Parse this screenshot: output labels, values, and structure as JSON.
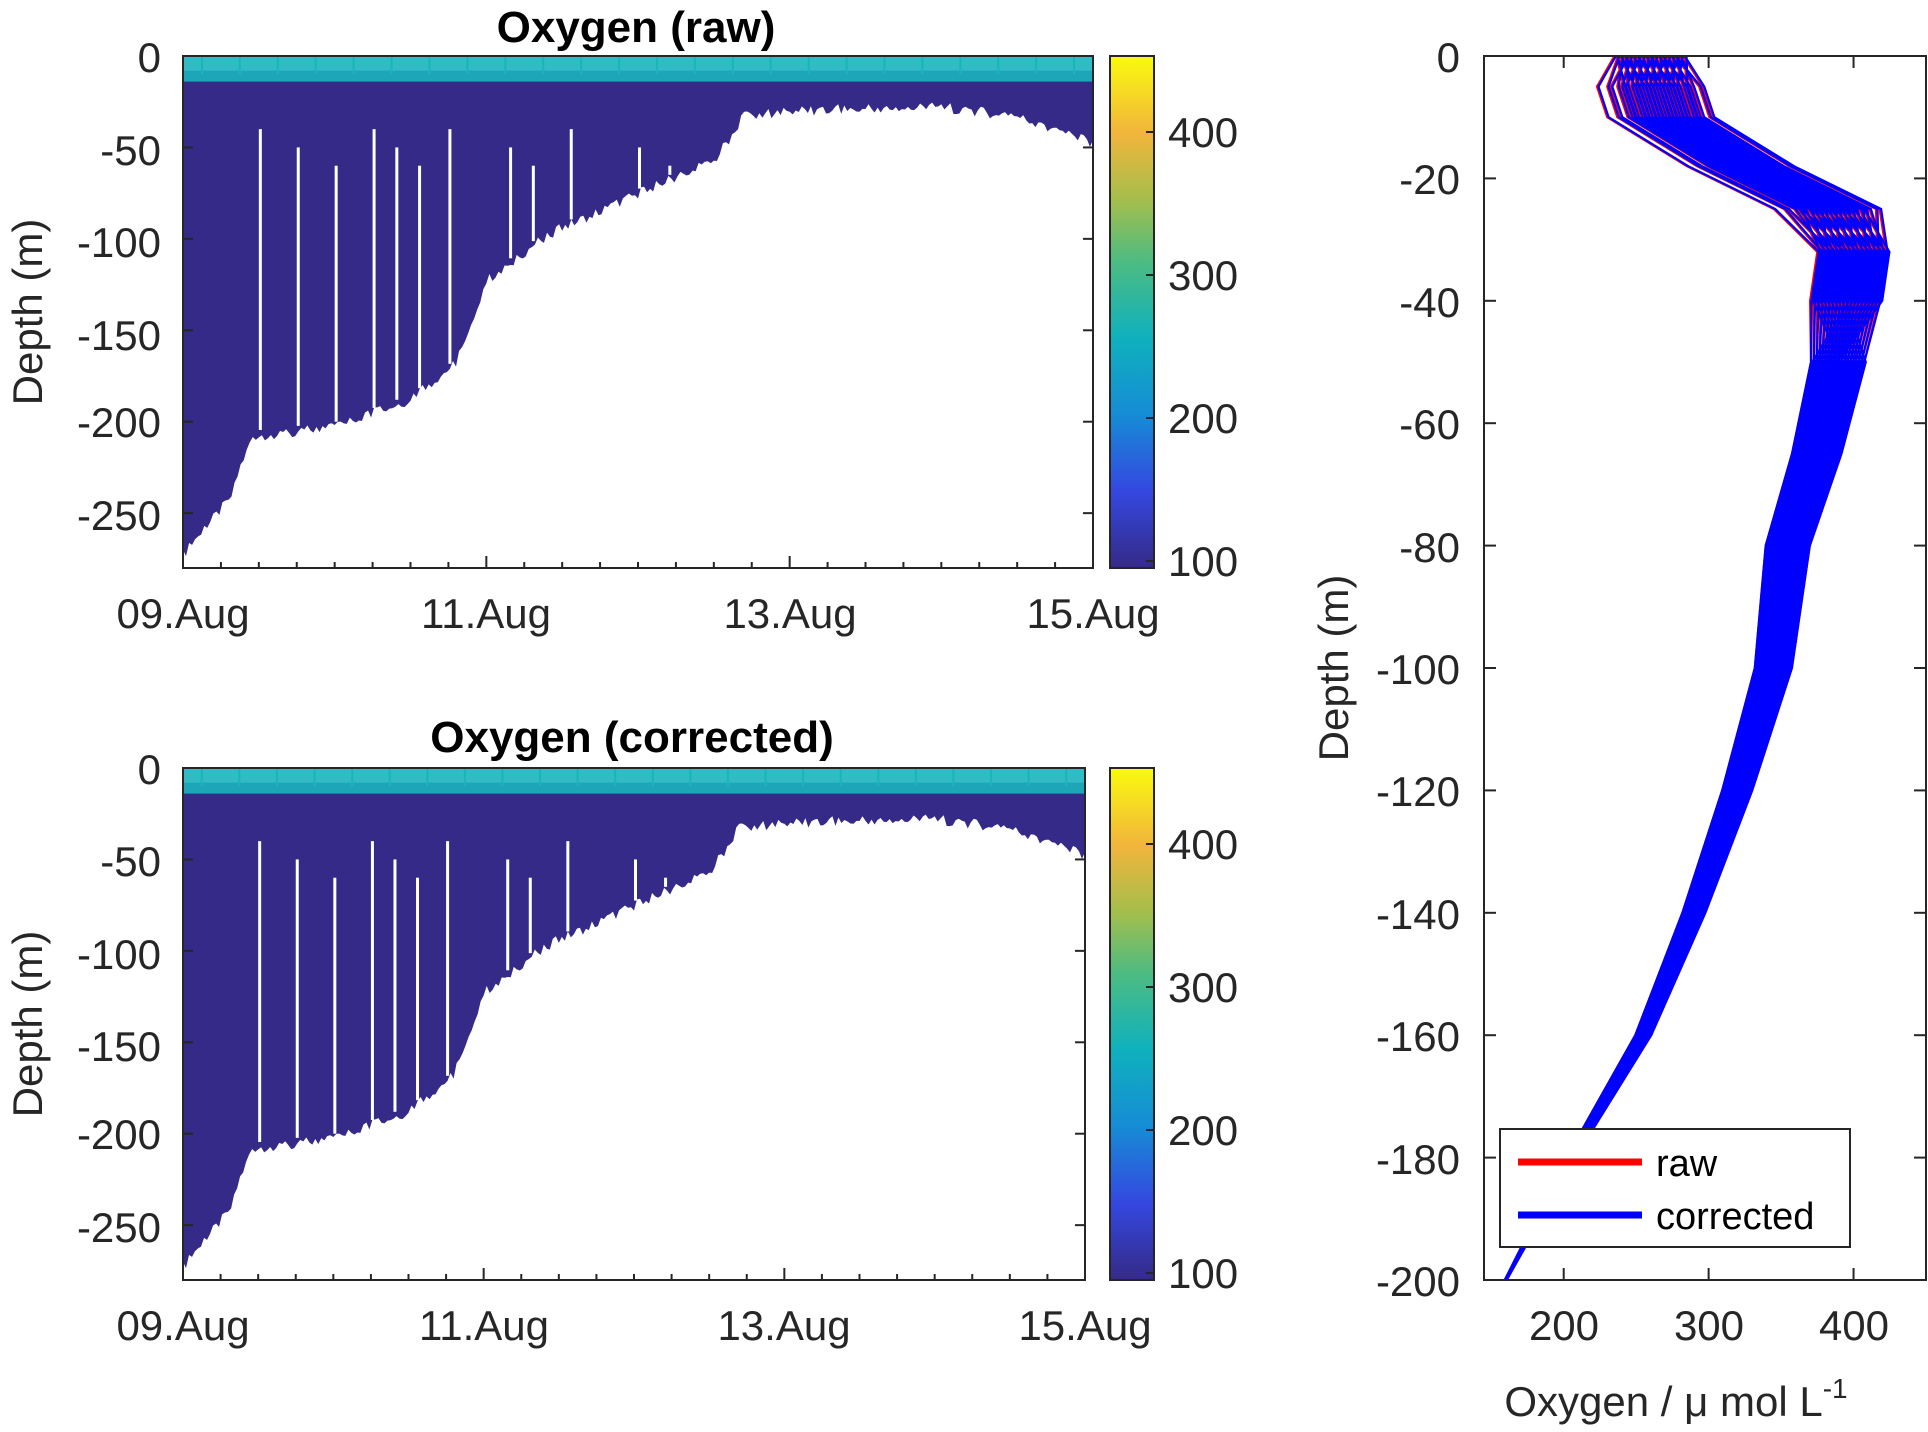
{
  "chart_data": [
    {
      "type": "heatmap",
      "title": "Oxygen (raw)",
      "ylabel": "Depth (m)",
      "xlabel": "",
      "x_tick_labels": [
        "09.Aug",
        "11.Aug",
        "13.Aug",
        "15.Aug"
      ],
      "y_tick_labels": [
        "0",
        "-50",
        "-100",
        "-150",
        "-200",
        "-250"
      ],
      "y_ticks": [
        0,
        -50,
        -100,
        -150,
        -200,
        -250
      ],
      "xlim_days": [
        9,
        15
      ],
      "ylim": [
        -280,
        0
      ],
      "colorbar": {
        "ticks": [
          100,
          200,
          300,
          400
        ],
        "tick_labels": [
          "100",
          "200",
          "300",
          "400"
        ],
        "range": [
          90,
          450
        ]
      },
      "bottom_profile": [
        {
          "day": 9.0,
          "depth": -270
        },
        {
          "day": 9.3,
          "depth": -240
        },
        {
          "day": 9.45,
          "depth": -205
        },
        {
          "day": 10.0,
          "depth": -200
        },
        {
          "day": 10.5,
          "depth": -185
        },
        {
          "day": 10.8,
          "depth": -165
        },
        {
          "day": 11.0,
          "depth": -120
        },
        {
          "day": 11.4,
          "depth": -95
        },
        {
          "day": 11.8,
          "depth": -80
        },
        {
          "day": 12.2,
          "depth": -65
        },
        {
          "day": 12.5,
          "depth": -55
        },
        {
          "day": 12.7,
          "depth": -30
        },
        {
          "day": 13.0,
          "depth": -27
        },
        {
          "day": 14.0,
          "depth": -25
        },
        {
          "day": 14.5,
          "depth": -30
        },
        {
          "day": 15.0,
          "depth": -45
        }
      ]
    },
    {
      "type": "heatmap",
      "title": "Oxygen (corrected)",
      "ylabel": "Depth (m)",
      "xlabel": "",
      "x_tick_labels": [
        "09.Aug",
        "11.Aug",
        "13.Aug",
        "15.Aug"
      ],
      "y_tick_labels": [
        "0",
        "-50",
        "-100",
        "-150",
        "-200",
        "-250"
      ],
      "y_ticks": [
        0,
        -50,
        -100,
        -150,
        -200,
        -250
      ],
      "xlim_days": [
        9,
        15
      ],
      "ylim": [
        -280,
        0
      ],
      "colorbar": {
        "ticks": [
          100,
          200,
          300,
          400
        ],
        "tick_labels": [
          "100",
          "200",
          "300",
          "400"
        ],
        "range": [
          90,
          450
        ]
      },
      "bottom_profile": [
        {
          "day": 9.0,
          "depth": -270
        },
        {
          "day": 9.3,
          "depth": -240
        },
        {
          "day": 9.45,
          "depth": -205
        },
        {
          "day": 10.0,
          "depth": -200
        },
        {
          "day": 10.5,
          "depth": -185
        },
        {
          "day": 10.8,
          "depth": -165
        },
        {
          "day": 11.0,
          "depth": -120
        },
        {
          "day": 11.4,
          "depth": -95
        },
        {
          "day": 11.8,
          "depth": -80
        },
        {
          "day": 12.2,
          "depth": -65
        },
        {
          "day": 12.5,
          "depth": -55
        },
        {
          "day": 12.7,
          "depth": -30
        },
        {
          "day": 13.0,
          "depth": -27
        },
        {
          "day": 14.0,
          "depth": -25
        },
        {
          "day": 14.5,
          "depth": -30
        },
        {
          "day": 15.0,
          "depth": -45
        }
      ]
    },
    {
      "type": "line",
      "title": "",
      "xlabel": "Oxygen / μ mol L",
      "xlabel_superscript": "-1",
      "ylabel": "Depth (m)",
      "xlim": [
        145,
        450
      ],
      "ylim": [
        -200,
        0
      ],
      "x_ticks": [
        200,
        300,
        400
      ],
      "x_tick_labels": [
        "200",
        "300",
        "400"
      ],
      "y_ticks": [
        0,
        -20,
        -40,
        -60,
        -80,
        -100,
        -120,
        -140,
        -160,
        -180,
        -200
      ],
      "y_tick_labels": [
        "0",
        "-20",
        "-40",
        "-60",
        "-80",
        "-100",
        "-120",
        "-140",
        "-160",
        "-180",
        "-200"
      ],
      "legend": {
        "position": "bottom-left",
        "entries": [
          "raw",
          "corrected"
        ]
      },
      "series": [
        {
          "name": "raw",
          "color": "#ff0000",
          "representative_profile": [
            {
              "x": 265,
              "y": 0
            },
            {
              "x": 268,
              "y": -5
            },
            {
              "x": 275,
              "y": -10
            },
            {
              "x": 330,
              "y": -18
            },
            {
              "x": 390,
              "y": -25
            },
            {
              "x": 405,
              "y": -32
            },
            {
              "x": 400,
              "y": -40
            },
            {
              "x": 390,
              "y": -50
            },
            {
              "x": 375,
              "y": -65
            },
            {
              "x": 355,
              "y": -80
            },
            {
              "x": 345,
              "y": -100
            },
            {
              "x": 320,
              "y": -120
            },
            {
              "x": 290,
              "y": -140
            },
            {
              "x": 255,
              "y": -160
            },
            {
              "x": 205,
              "y": -180
            },
            {
              "x": 160,
              "y": -200
            }
          ]
        },
        {
          "name": "corrected",
          "color": "#0000ff",
          "representative_profile": [
            {
              "x": 265,
              "y": 0
            },
            {
              "x": 268,
              "y": -5
            },
            {
              "x": 275,
              "y": -10
            },
            {
              "x": 330,
              "y": -18
            },
            {
              "x": 390,
              "y": -25
            },
            {
              "x": 405,
              "y": -32
            },
            {
              "x": 400,
              "y": -40
            },
            {
              "x": 390,
              "y": -50
            },
            {
              "x": 375,
              "y": -65
            },
            {
              "x": 355,
              "y": -80
            },
            {
              "x": 345,
              "y": -100
            },
            {
              "x": 320,
              "y": -120
            },
            {
              "x": 290,
              "y": -140
            },
            {
              "x": 255,
              "y": -160
            },
            {
              "x": 205,
              "y": -180
            },
            {
              "x": 160,
              "y": -200
            }
          ]
        }
      ]
    }
  ]
}
